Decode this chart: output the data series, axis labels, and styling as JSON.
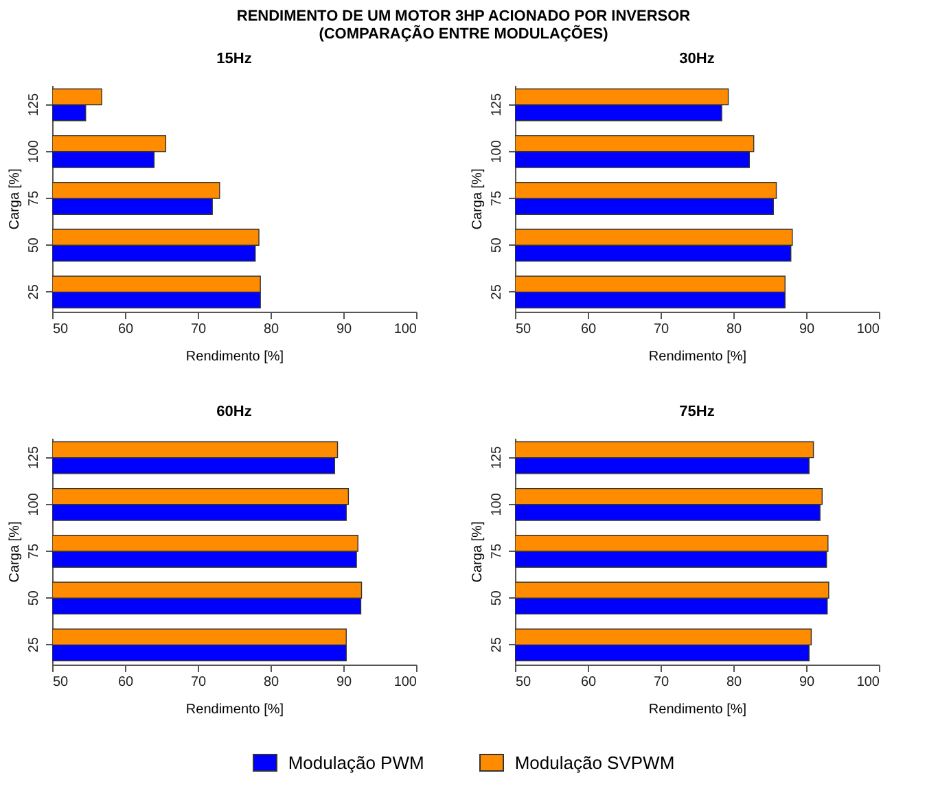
{
  "chart_data": [
    {
      "type": "bar",
      "orientation": "horizontal",
      "title": "15Hz",
      "annotations": [
        "RENDIMENTO DE UM MOTOR 3HP ACIONADO POR INVERSOR",
        "(COMPARAÇÃO ENTRE MODULAÇÕES)"
      ],
      "xlabel": "Rendimento [%]",
      "ylabel": "Carga [%]",
      "categories": [
        "125",
        "100",
        "75",
        "50",
        "25"
      ],
      "xlim": [
        50,
        100
      ],
      "xticks": [
        50,
        60,
        70,
        80,
        90,
        100
      ],
      "grid": false,
      "legend": "bottom",
      "series": [
        {
          "name": "Modulação PWM",
          "color": "#0000ff",
          "values": [
            54.6,
            64.0,
            72.0,
            77.9,
            78.6
          ]
        },
        {
          "name": "Modulação SVPWM",
          "color": "#ff8c00",
          "values": [
            56.8,
            65.6,
            73.0,
            78.4,
            78.6
          ]
        }
      ]
    },
    {
      "type": "bar",
      "orientation": "horizontal",
      "title": "30Hz",
      "xlabel": "Rendimento [%]",
      "ylabel": "Carga [%]",
      "categories": [
        "125",
        "100",
        "75",
        "50",
        "25"
      ],
      "xlim": [
        50,
        100
      ],
      "xticks": [
        50,
        60,
        70,
        80,
        90,
        100
      ],
      "grid": false,
      "series": [
        {
          "color": "#0000ff",
          "values": [
            78.4,
            82.2,
            85.5,
            87.9,
            87.1
          ]
        },
        {
          "color": "#ff8c00",
          "values": [
            79.3,
            82.8,
            85.9,
            88.1,
            87.1
          ]
        }
      ]
    },
    {
      "type": "bar",
      "orientation": "horizontal",
      "title": "60Hz",
      "xlabel": "Rendimento [%]",
      "ylabel": "Carga [%]",
      "categories": [
        "125",
        "100",
        "75",
        "50",
        "25"
      ],
      "xlim": [
        50,
        100
      ],
      "xticks": [
        50,
        60,
        70,
        80,
        90,
        100
      ],
      "grid": false,
      "series": [
        {
          "color": "#0000ff",
          "values": [
            88.8,
            90.4,
            91.8,
            92.4,
            90.4
          ]
        },
        {
          "color": "#ff8c00",
          "values": [
            89.2,
            90.7,
            92.0,
            92.5,
            90.4
          ]
        }
      ]
    },
    {
      "type": "bar",
      "orientation": "horizontal",
      "title": "75Hz",
      "xlabel": "Rendimento [%]",
      "ylabel": "Carga [%]",
      "categories": [
        "125",
        "100",
        "75",
        "50",
        "25"
      ],
      "xlim": [
        50,
        100
      ],
      "xticks": [
        50,
        60,
        70,
        80,
        90,
        100
      ],
      "grid": false,
      "series": [
        {
          "color": "#0000ff",
          "values": [
            90.4,
            91.9,
            92.8,
            92.9,
            90.4
          ]
        },
        {
          "color": "#ff8c00",
          "values": [
            91.0,
            92.2,
            93.0,
            93.1,
            90.7
          ]
        }
      ]
    }
  ]
}
